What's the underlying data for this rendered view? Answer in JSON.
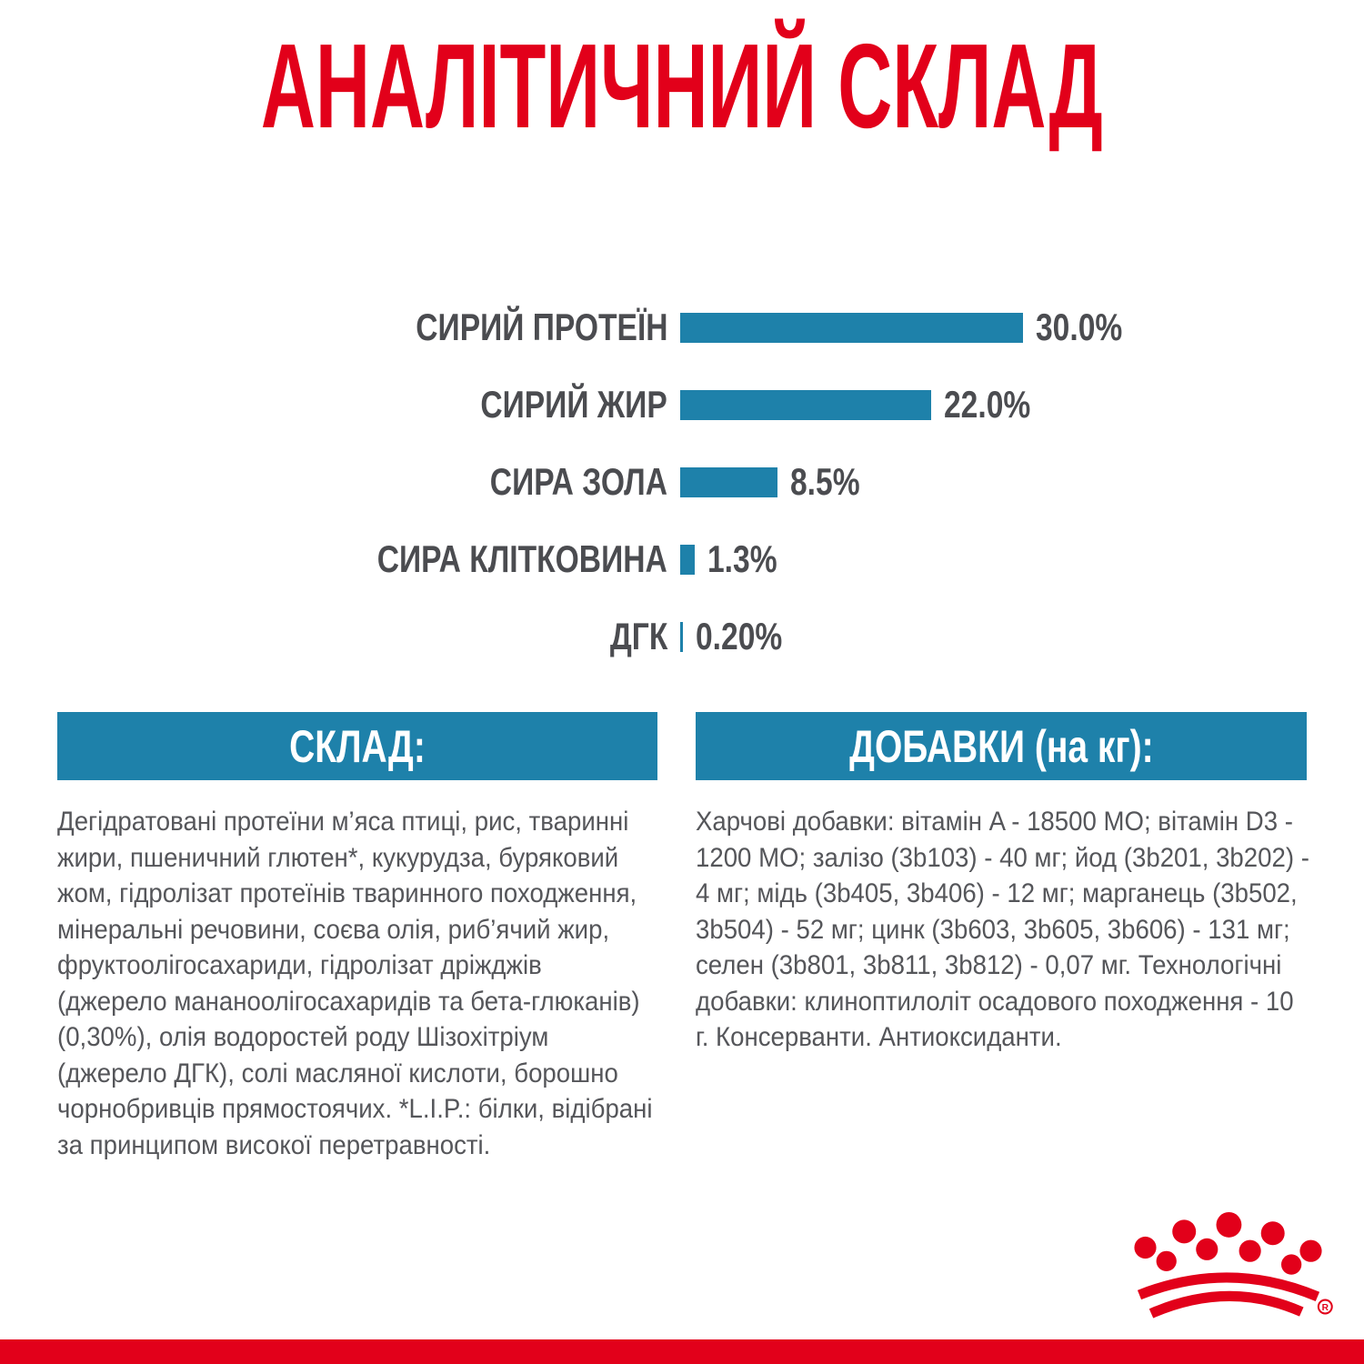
{
  "title": "АНАЛІТИЧНИЙ СКЛАД",
  "chart_data": {
    "type": "bar",
    "orientation": "horizontal",
    "categories": [
      "СИРИЙ ПРОТЕЇН",
      "СИРИЙ ЖИР",
      "СИРА ЗОЛА",
      "СИРА КЛІТКОВИНА",
      "ДГК"
    ],
    "values": [
      30.0,
      22.0,
      8.5,
      1.3,
      0.2
    ],
    "value_labels": [
      "30.0%",
      "22.0%",
      "8.5%",
      "1.3%",
      "0.20%"
    ],
    "xlim": [
      0,
      30
    ],
    "grid": false,
    "legend": "none",
    "bar_color": "#1E81AA",
    "label_color": "#4B4C50"
  },
  "sections": {
    "composition": {
      "header": "СКЛАД:",
      "body": "Дегідратовані протеїни м’яса птиці, рис, тваринні жири, пшеничний глютен*, кукурудза, буряковий жом, гідролізат протеїнів тваринного походження, мінеральні речовини, соєва олія, риб’ячий жир, фруктоолігосахариди, гідролізат дріжджів (джерело мананоолігосахаридів та бета-глюканів) (0,30%), олія водоростей роду Шізохітріум (джерело ДГК), солі масляної кислоти, борошно чорнобривців прямостоячих. *L.I.P.: білки, відібрані за принципом високої перетравності."
    },
    "additives": {
      "header": "ДОБАВКИ (на кг):",
      "body": "Харчові добавки: вітамін A - 18500 МО; вітамін D3 - 1200 МО; залізо (3b103) - 40 мг; йод (3b201, 3b202) - 4 мг; мідь (3b405, 3b406) - 12 мг; марганець (3b502, 3b504) - 52 мг; цинк (3b603, 3b605, 3b606) - 131 мг; селен (3b801, 3b811, 3b812) - 0,07 мг. Технологічні добавки: клиноптилоліт осадового походження - 10 г. Консерванти. Антиоксиданти."
    }
  },
  "brand": {
    "logo": "royal-canin-crown",
    "registered_mark": "®"
  },
  "colors": {
    "red": "#E2001A",
    "teal": "#1E81AA",
    "text_gray": "#55565A",
    "label_gray": "#4B4C50"
  }
}
